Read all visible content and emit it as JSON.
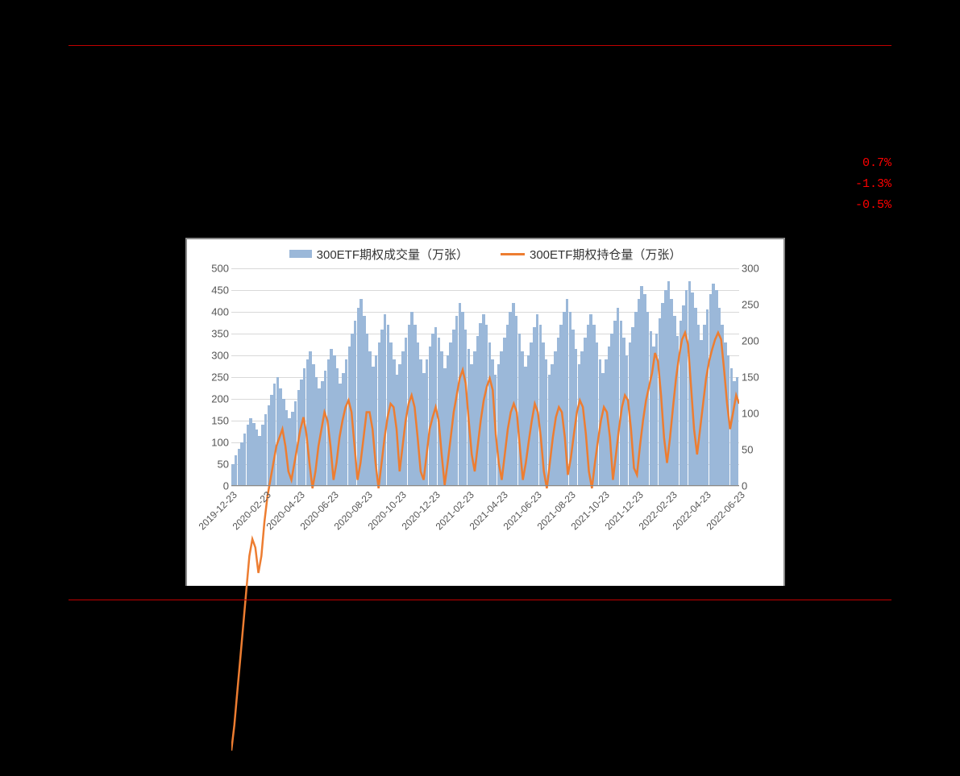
{
  "percents": {
    "v1": "0.7%",
    "v2": "-1.3%",
    "v3": "-0.5%"
  },
  "chart": {
    "type": "bar+line-dual-axis",
    "legend": {
      "bar_label": "300ETF期权成交量（万张）",
      "line_label": "300ETF期权持仓量（万张）"
    },
    "colors": {
      "bar": "#9bb8d9",
      "line": "#ed7d31",
      "grid": "#d9d9d9",
      "axis": "#888888",
      "text": "#555555",
      "percent": "#ff0000",
      "rule": "#c00000",
      "background": "#ffffff",
      "page_bg": "#000000"
    },
    "y_left": {
      "min": 0,
      "max": 500,
      "step": 50,
      "ticks": [
        0,
        50,
        100,
        150,
        200,
        250,
        300,
        350,
        400,
        450,
        500
      ]
    },
    "y_right": {
      "min": 0,
      "max": 300,
      "step": 50,
      "ticks": [
        0,
        50,
        100,
        150,
        200,
        250,
        300
      ]
    },
    "x_labels": [
      "2019-12-23",
      "2020-02-23",
      "2020-04-23",
      "2020-06-23",
      "2020-08-23",
      "2020-10-23",
      "2020-12-23",
      "2021-02-23",
      "2021-04-23",
      "2021-06-23",
      "2021-08-23",
      "2021-10-23",
      "2021-12-23",
      "2022-02-23",
      "2022-04-23",
      "2022-06-23"
    ],
    "line_values_right_axis": [
      15,
      30,
      50,
      70,
      90,
      110,
      130,
      140,
      135,
      120,
      130,
      150,
      165,
      175,
      185,
      195,
      200,
      205,
      195,
      180,
      175,
      185,
      195,
      205,
      212,
      202,
      185,
      170,
      180,
      195,
      205,
      215,
      210,
      195,
      175,
      185,
      200,
      210,
      218,
      222,
      215,
      195,
      175,
      185,
      200,
      215,
      215,
      205,
      185,
      170,
      185,
      200,
      212,
      220,
      218,
      205,
      180,
      195,
      210,
      220,
      225,
      218,
      200,
      180,
      175,
      190,
      205,
      212,
      218,
      210,
      190,
      172,
      185,
      200,
      215,
      225,
      235,
      240,
      232,
      210,
      190,
      180,
      195,
      210,
      222,
      230,
      235,
      228,
      202,
      185,
      175,
      190,
      205,
      215,
      220,
      215,
      195,
      175,
      185,
      198,
      210,
      220,
      215,
      200,
      180,
      170,
      185,
      200,
      212,
      218,
      215,
      200,
      178,
      188,
      202,
      215,
      222,
      218,
      202,
      180,
      170,
      185,
      198,
      210,
      218,
      215,
      200,
      175,
      190,
      205,
      218,
      225,
      222,
      205,
      182,
      178,
      195,
      210,
      222,
      230,
      238,
      250,
      245,
      225,
      200,
      185,
      200,
      218,
      235,
      248,
      258,
      262,
      255,
      230,
      205,
      190,
      205,
      220,
      235,
      245,
      252,
      258,
      262,
      258,
      240,
      220,
      205,
      215,
      225,
      220
    ],
    "bar_values_left_axis": [
      50,
      70,
      85,
      100,
      120,
      140,
      155,
      145,
      130,
      115,
      140,
      165,
      185,
      210,
      235,
      250,
      225,
      200,
      175,
      155,
      170,
      195,
      220,
      245,
      270,
      290,
      310,
      280,
      250,
      225,
      240,
      265,
      290,
      315,
      300,
      270,
      235,
      260,
      290,
      320,
      350,
      380,
      410,
      430,
      390,
      350,
      310,
      275,
      300,
      330,
      360,
      395,
      370,
      330,
      290,
      255,
      280,
      310,
      340,
      370,
      400,
      370,
      330,
      290,
      260,
      290,
      320,
      350,
      365,
      340,
      310,
      270,
      300,
      330,
      360,
      390,
      420,
      400,
      360,
      315,
      280,
      310,
      345,
      375,
      395,
      370,
      330,
      290,
      255,
      280,
      310,
      340,
      370,
      400,
      420,
      390,
      350,
      310,
      275,
      300,
      330,
      365,
      395,
      370,
      330,
      290,
      255,
      280,
      310,
      340,
      370,
      400,
      430,
      400,
      360,
      315,
      280,
      310,
      340,
      370,
      395,
      370,
      330,
      290,
      260,
      290,
      320,
      350,
      380,
      410,
      380,
      340,
      300,
      330,
      365,
      400,
      430,
      460,
      440,
      400,
      355,
      320,
      350,
      385,
      420,
      450,
      470,
      430,
      390,
      345,
      380,
      415,
      450,
      470,
      445,
      410,
      370,
      335,
      370,
      405,
      440,
      465,
      450,
      410,
      370,
      330,
      300,
      270,
      240,
      250
    ],
    "fontsize_axis": 13,
    "fontsize_legend": 15,
    "line_width": 2.5
  }
}
